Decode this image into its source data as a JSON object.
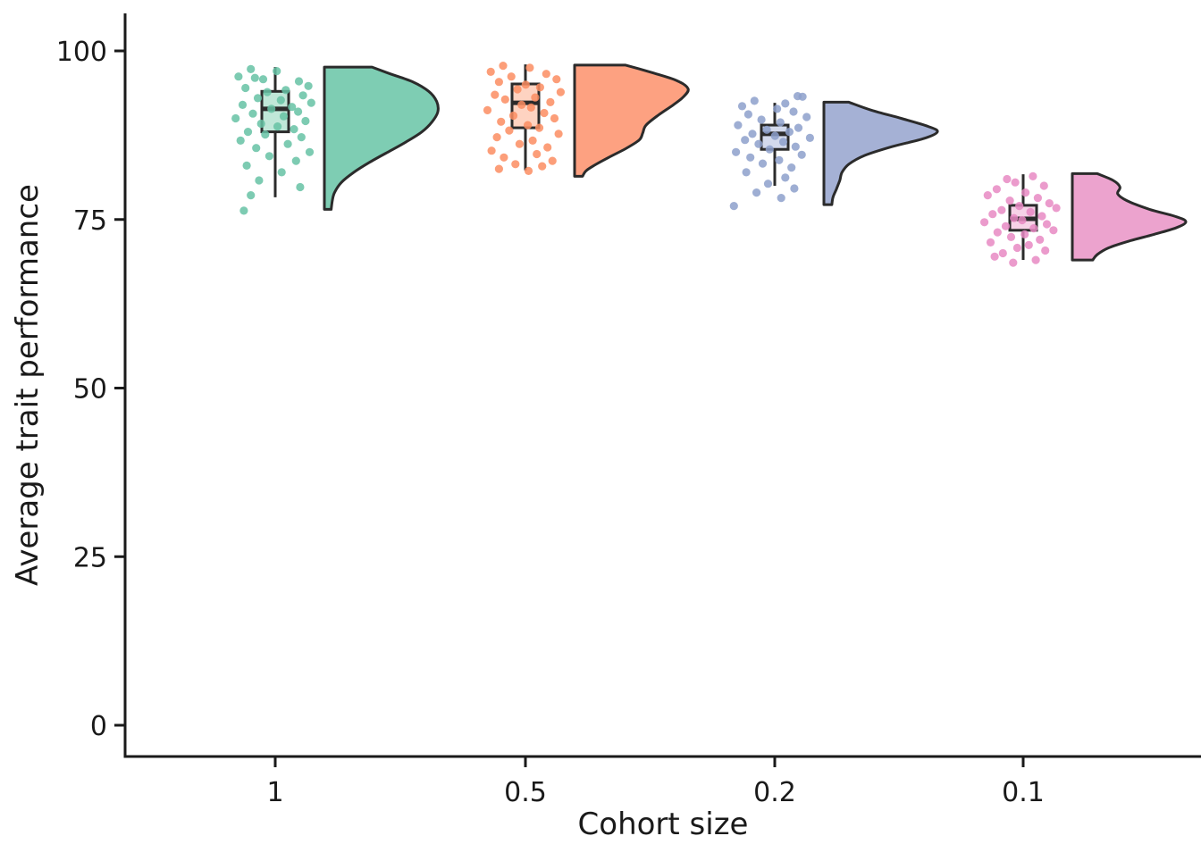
{
  "chart_data": {
    "type": "raincloud (jittered strip + box + right half-violin per category)",
    "title": "",
    "xlabel": "Cohort size",
    "ylabel": "Average trait performance",
    "categories": [
      "1",
      "0.5",
      "0.2",
      "0.1"
    ],
    "yticks": [
      0,
      25,
      50,
      75,
      100
    ],
    "ytick_labels": [
      "0",
      "25",
      "50",
      "75",
      "100"
    ],
    "ylim": [
      -4.5,
      105.5
    ],
    "grid": false,
    "legend": null,
    "axis_color": "#1a1a1a",
    "shape_stroke_color": "#2b2b2b",
    "groups": [
      {
        "category": "1",
        "point_color": "#66c2a5",
        "violin_fill": "#7ecdb3",
        "box_fill": "#c0e7d8",
        "box": {
          "whisker_low": 78.3,
          "q1": 88.0,
          "median": 91.4,
          "q3": 94.0,
          "whisker_high": 97.6
        },
        "violin_profile": [
          [
            97.6,
            0.42
          ],
          [
            96.6,
            0.58
          ],
          [
            95.4,
            0.78
          ],
          [
            94.0,
            0.92
          ],
          [
            92.5,
            0.99
          ],
          [
            91.0,
            1.0
          ],
          [
            89.5,
            0.95
          ],
          [
            88.0,
            0.86
          ],
          [
            86.5,
            0.72
          ],
          [
            85.0,
            0.56
          ],
          [
            83.5,
            0.4
          ],
          [
            82.0,
            0.26
          ],
          [
            80.5,
            0.15
          ],
          [
            79.0,
            0.09
          ],
          [
            77.8,
            0.07
          ],
          [
            76.5,
            0.06
          ]
        ],
        "points": [
          [
            -0.55,
            97.3
          ],
          [
            0.08,
            97.0
          ],
          [
            -0.85,
            96.2
          ],
          [
            -0.45,
            96.0
          ],
          [
            -0.25,
            95.8
          ],
          [
            0.62,
            95.5
          ],
          [
            0.85,
            94.8
          ],
          [
            -0.68,
            94.5
          ],
          [
            0.3,
            94.2
          ],
          [
            -0.15,
            93.9
          ],
          [
            0.72,
            93.4
          ],
          [
            -0.38,
            93.0
          ],
          [
            0.18,
            92.7
          ],
          [
            0.92,
            92.3
          ],
          [
            -0.75,
            92.0
          ],
          [
            0.45,
            91.7
          ],
          [
            -0.05,
            91.4
          ],
          [
            0.6,
            91.0
          ],
          [
            -0.5,
            90.7
          ],
          [
            0.25,
            90.3
          ],
          [
            -0.92,
            90.0
          ],
          [
            0.78,
            89.6
          ],
          [
            -0.3,
            89.2
          ],
          [
            0.1,
            88.8
          ],
          [
            0.5,
            88.4
          ],
          [
            -0.62,
            88.0
          ],
          [
            -0.2,
            87.6
          ],
          [
            0.68,
            87.2
          ],
          [
            -0.8,
            86.7
          ],
          [
            0.35,
            86.2
          ],
          [
            -0.42,
            85.6
          ],
          [
            0.88,
            85.0
          ],
          [
            -0.1,
            84.4
          ],
          [
            0.55,
            83.7
          ],
          [
            -0.65,
            83.0
          ],
          [
            0.2,
            82.0
          ],
          [
            -0.35,
            80.8
          ],
          [
            0.65,
            79.8
          ],
          [
            -0.55,
            78.6
          ],
          [
            -0.72,
            76.3
          ]
        ]
      },
      {
        "category": "0.5",
        "point_color": "#fc8d62",
        "violin_fill": "#fda181",
        "box_fill": "#fed3c1",
        "box": {
          "whisker_low": 82.3,
          "q1": 88.6,
          "median": 92.3,
          "q3": 95.1,
          "whisker_high": 98.0
        },
        "violin_profile": [
          [
            97.9,
            0.45
          ],
          [
            96.8,
            0.68
          ],
          [
            95.6,
            0.9
          ],
          [
            94.4,
            1.0
          ],
          [
            93.2,
            0.96
          ],
          [
            92.0,
            0.87
          ],
          [
            90.5,
            0.74
          ],
          [
            89.0,
            0.63
          ],
          [
            87.8,
            0.6
          ],
          [
            86.8,
            0.57
          ],
          [
            85.5,
            0.45
          ],
          [
            84.2,
            0.3
          ],
          [
            83.0,
            0.17
          ],
          [
            82.2,
            0.1
          ],
          [
            81.4,
            0.07
          ]
        ],
        "points": [
          [
            -0.5,
            97.8
          ],
          [
            0.15,
            97.5
          ],
          [
            -0.8,
            96.9
          ],
          [
            0.55,
            96.6
          ],
          [
            -0.3,
            96.2
          ],
          [
            0.8,
            95.8
          ],
          [
            -0.6,
            95.4
          ],
          [
            0.05,
            95.0
          ],
          [
            0.4,
            94.6
          ],
          [
            -0.15,
            94.3
          ],
          [
            0.9,
            93.9
          ],
          [
            -0.7,
            93.5
          ],
          [
            0.28,
            93.1
          ],
          [
            -0.45,
            92.8
          ],
          [
            0.65,
            92.4
          ],
          [
            -0.05,
            92.0
          ],
          [
            0.18,
            91.6
          ],
          [
            -0.88,
            91.2
          ],
          [
            0.5,
            90.8
          ],
          [
            -0.25,
            90.4
          ],
          [
            0.75,
            90.0
          ],
          [
            -0.55,
            89.5
          ],
          [
            0.1,
            89.0
          ],
          [
            0.38,
            88.6
          ],
          [
            -0.35,
            88.2
          ],
          [
            0.85,
            87.7
          ],
          [
            -0.65,
            87.2
          ],
          [
            0.22,
            86.7
          ],
          [
            -0.1,
            86.2
          ],
          [
            0.58,
            85.7
          ],
          [
            -0.78,
            85.2
          ],
          [
            0.32,
            84.7
          ],
          [
            -0.48,
            84.2
          ],
          [
            0.7,
            83.7
          ],
          [
            -0.2,
            83.2
          ],
          [
            0.45,
            82.9
          ],
          [
            -0.6,
            82.5
          ],
          [
            0.12,
            82.2
          ]
        ]
      },
      {
        "category": "0.2",
        "point_color": "#8da0cb",
        "violin_fill": "#a5b1d5",
        "box_fill": "#d3daec",
        "box": {
          "whisker_low": 80.0,
          "q1": 85.4,
          "median": 87.7,
          "q3": 89.0,
          "whisker_high": 92.3
        },
        "violin_profile": [
          [
            92.4,
            0.22
          ],
          [
            91.2,
            0.42
          ],
          [
            90.0,
            0.68
          ],
          [
            88.8,
            0.92
          ],
          [
            88.0,
            1.0
          ],
          [
            87.0,
            0.88
          ],
          [
            85.8,
            0.6
          ],
          [
            84.5,
            0.36
          ],
          [
            83.2,
            0.22
          ],
          [
            82.0,
            0.16
          ],
          [
            80.8,
            0.14
          ],
          [
            79.5,
            0.11
          ],
          [
            78.3,
            0.08
          ],
          [
            77.2,
            0.07
          ]
        ],
        "points": [
          [
            0.6,
            93.3
          ],
          [
            0.72,
            93.2
          ],
          [
            -0.45,
            92.6
          ],
          [
            0.3,
            92.2
          ],
          [
            -0.75,
            91.8
          ],
          [
            0.1,
            91.4
          ],
          [
            0.5,
            91.0
          ],
          [
            -0.6,
            90.6
          ],
          [
            0.82,
            90.2
          ],
          [
            -0.28,
            89.8
          ],
          [
            0.18,
            89.4
          ],
          [
            -0.85,
            89.0
          ],
          [
            0.62,
            88.6
          ],
          [
            -0.15,
            88.3
          ],
          [
            0.4,
            88.0
          ],
          [
            -0.5,
            87.7
          ],
          [
            0.05,
            87.4
          ],
          [
            0.9,
            87.1
          ],
          [
            -0.68,
            86.8
          ],
          [
            0.25,
            86.5
          ],
          [
            -0.35,
            86.2
          ],
          [
            0.55,
            85.8
          ],
          [
            -0.08,
            85.4
          ],
          [
            -0.9,
            85.0
          ],
          [
            0.7,
            84.6
          ],
          [
            -0.55,
            84.2
          ],
          [
            0.15,
            83.8
          ],
          [
            -0.25,
            83.3
          ],
          [
            0.45,
            82.7
          ],
          [
            -0.65,
            82.0
          ],
          [
            0.3,
            81.2
          ],
          [
            -0.12,
            80.3
          ],
          [
            0.52,
            79.6
          ],
          [
            -0.4,
            79.0
          ],
          [
            0.2,
            78.2
          ],
          [
            -0.95,
            77.0
          ]
        ]
      },
      {
        "category": "0.1",
        "point_color": "#e78ac3",
        "violin_fill": "#eca3ce",
        "box_fill": "#f6d2e7",
        "box": {
          "whisker_low": 69.0,
          "q1": 73.4,
          "median": 75.1,
          "q3": 77.1,
          "whisker_high": 81.7
        },
        "violin_profile": [
          [
            81.8,
            0.22
          ],
          [
            80.8,
            0.36
          ],
          [
            79.8,
            0.42
          ],
          [
            78.8,
            0.4
          ],
          [
            77.8,
            0.48
          ],
          [
            76.5,
            0.68
          ],
          [
            75.5,
            0.9
          ],
          [
            74.7,
            1.0
          ],
          [
            73.8,
            0.92
          ],
          [
            72.8,
            0.72
          ],
          [
            71.8,
            0.5
          ],
          [
            70.8,
            0.32
          ],
          [
            69.8,
            0.22
          ],
          [
            69.0,
            0.18
          ]
        ],
        "points": [
          [
            0.28,
            81.4
          ],
          [
            -0.35,
            81.0
          ],
          [
            -0.15,
            80.5
          ],
          [
            0.55,
            80.0
          ],
          [
            -0.6,
            79.5
          ],
          [
            0.1,
            79.0
          ],
          [
            -0.82,
            78.6
          ],
          [
            0.4,
            78.2
          ],
          [
            -0.28,
            77.8
          ],
          [
            0.68,
            77.4
          ],
          [
            -0.05,
            77.0
          ],
          [
            0.85,
            76.7
          ],
          [
            -0.48,
            76.4
          ],
          [
            0.22,
            76.1
          ],
          [
            -0.7,
            75.8
          ],
          [
            0.5,
            75.5
          ],
          [
            -0.18,
            75.2
          ],
          [
            0.02,
            74.9
          ],
          [
            -0.9,
            74.6
          ],
          [
            0.62,
            74.3
          ],
          [
            -0.38,
            74.0
          ],
          [
            0.3,
            73.7
          ],
          [
            0.78,
            73.4
          ],
          [
            -0.58,
            73.1
          ],
          [
            0.08,
            72.8
          ],
          [
            -0.25,
            72.4
          ],
          [
            0.45,
            72.0
          ],
          [
            -0.75,
            71.6
          ],
          [
            0.18,
            71.2
          ],
          [
            -0.1,
            70.8
          ],
          [
            0.58,
            70.4
          ],
          [
            -0.45,
            70.0
          ],
          [
            -0.65,
            69.5
          ],
          [
            0.35,
            69.0
          ],
          [
            -0.2,
            68.6
          ]
        ]
      }
    ]
  }
}
